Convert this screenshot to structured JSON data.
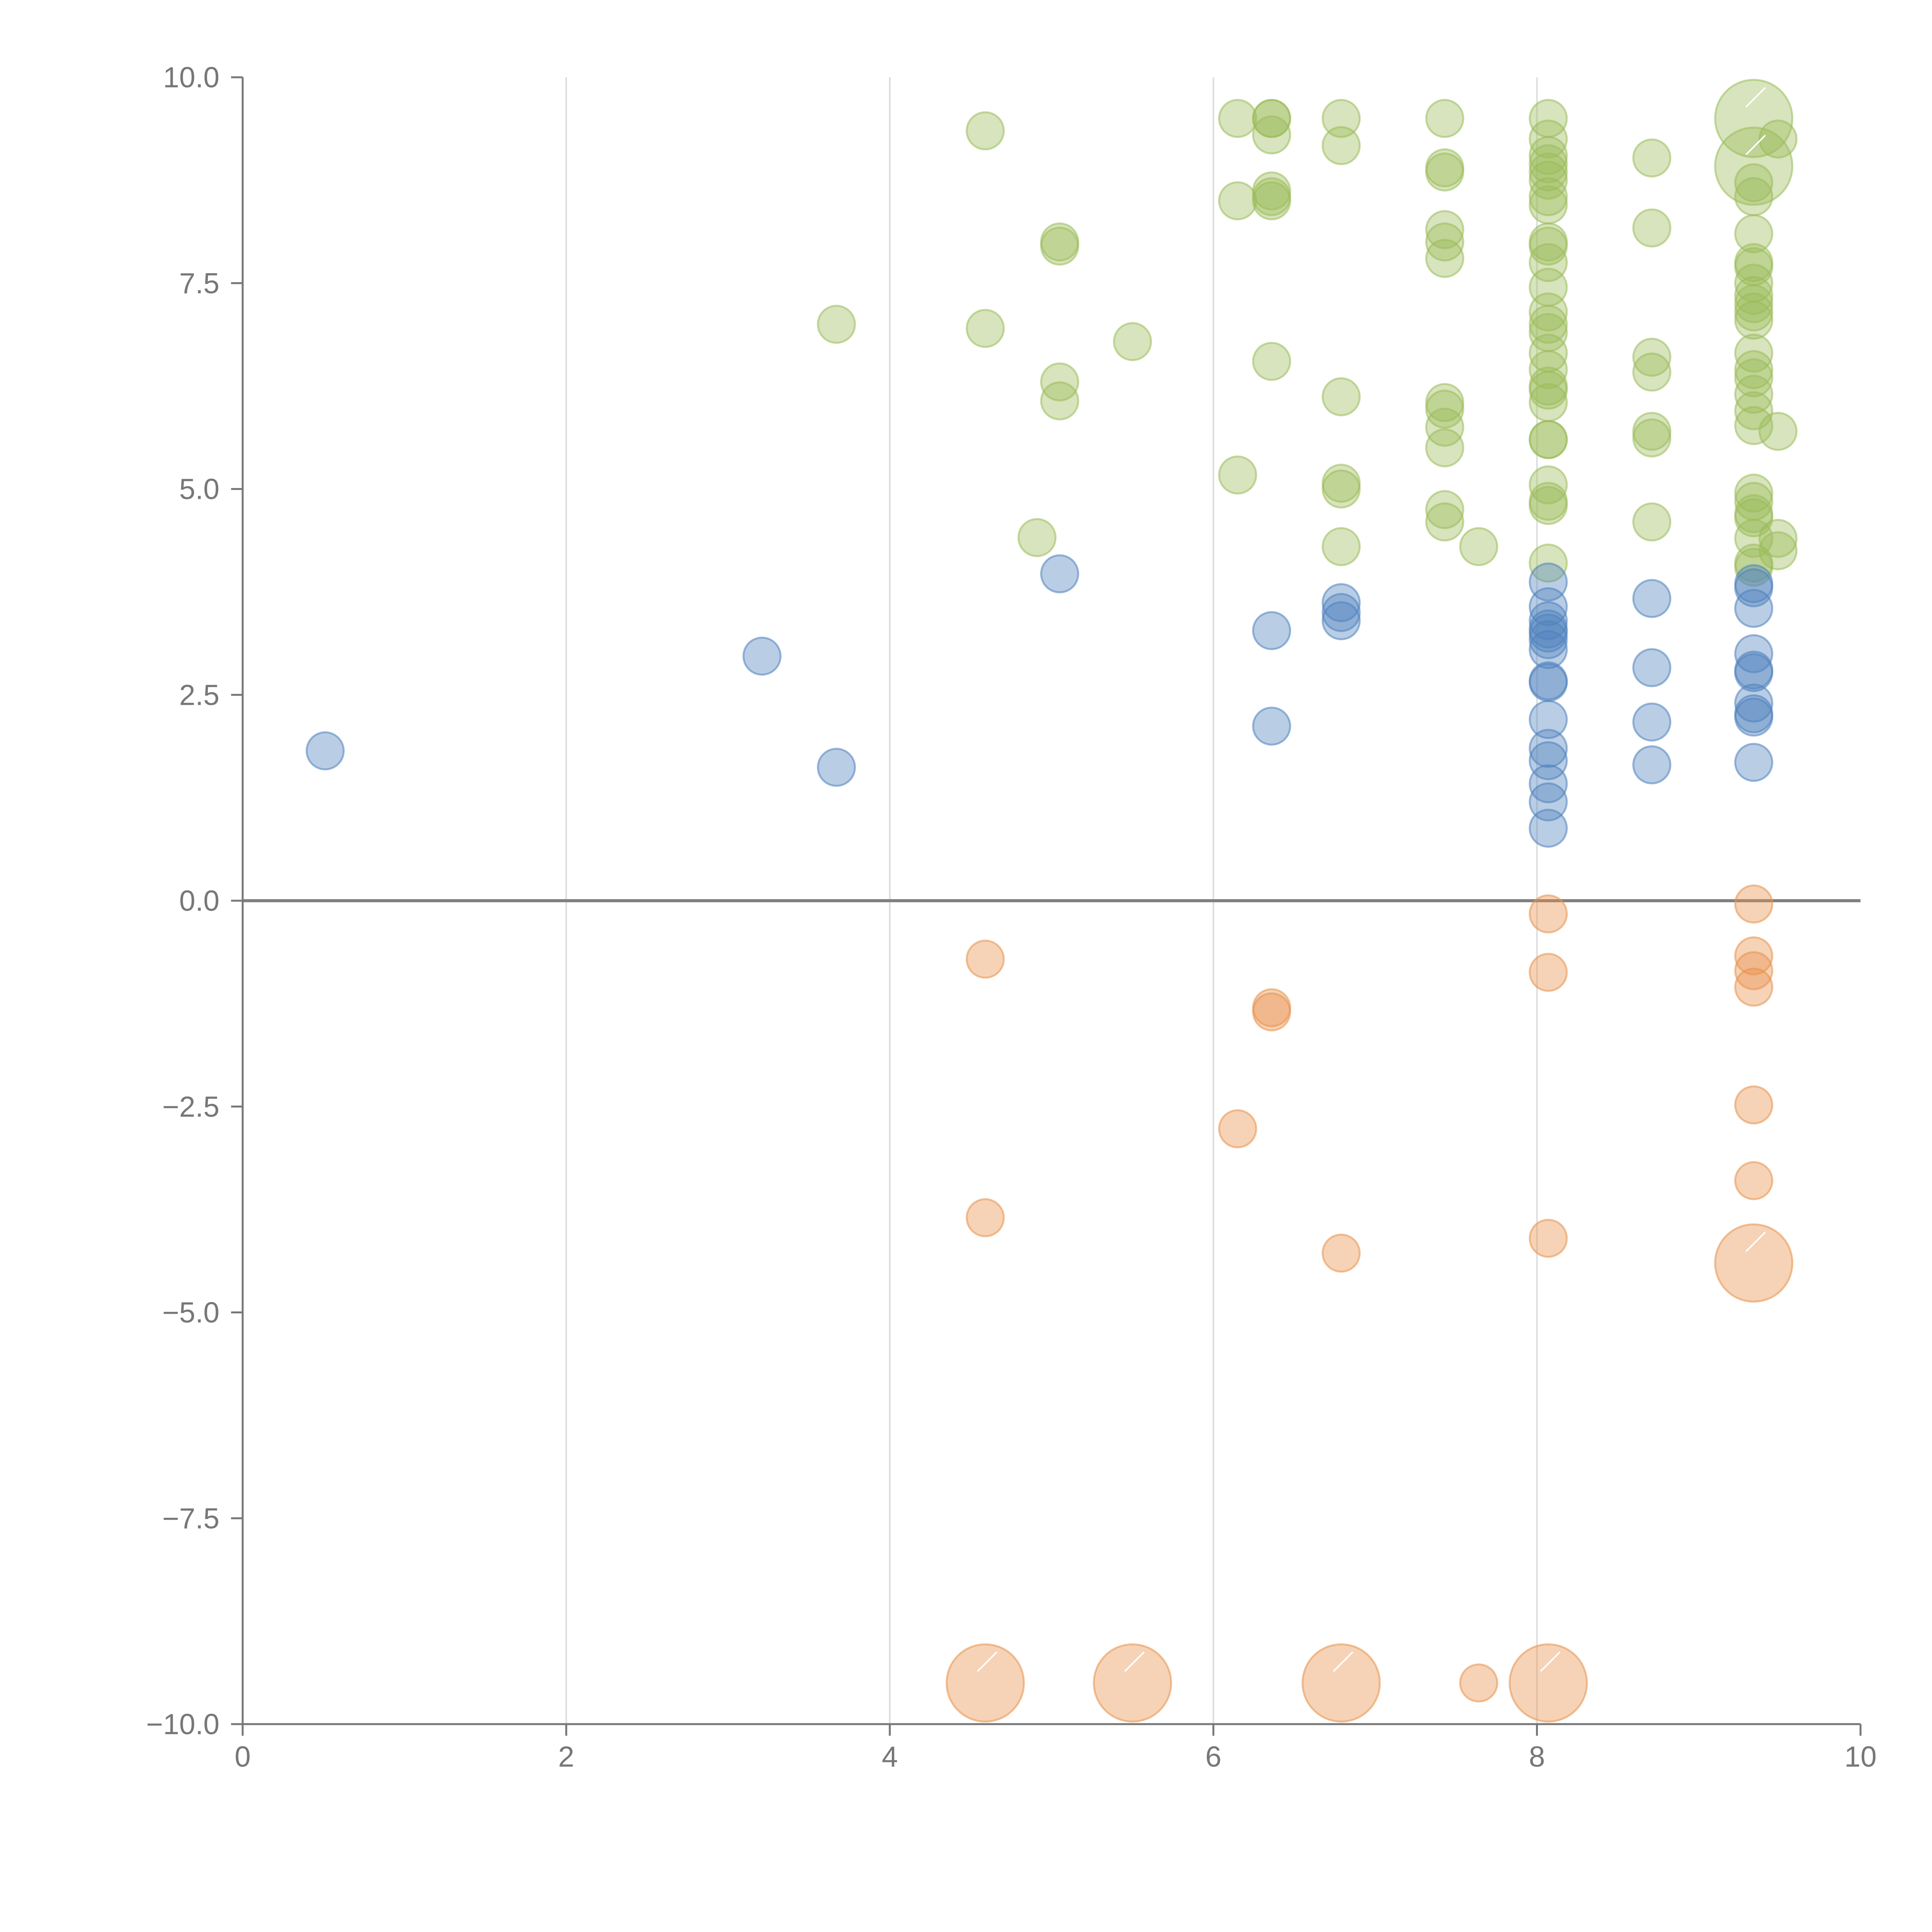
{
  "chart_data": {
    "type": "scatter",
    "title": "",
    "xlabel": "",
    "ylabel": "",
    "xlim": [
      0,
      10
    ],
    "ylim": [
      -10,
      10
    ],
    "x_ticks": [
      "0",
      "2",
      "4",
      "6",
      "8",
      "10"
    ],
    "y_ticks": [
      "10.0",
      "7.5",
      "5.0",
      "2.5",
      "0.0",
      "−2.5",
      "−5.0",
      "−7.5",
      "−10.0"
    ],
    "x_grid": [
      2,
      4,
      6,
      8
    ],
    "zero_line": 0,
    "series": [
      {
        "name": "green",
        "color": "#9bbb59",
        "points": [
          [
            3.67,
            7.0
          ],
          [
            4.59,
            9.35
          ],
          [
            4.59,
            6.95
          ],
          [
            4.91,
            4.41
          ],
          [
            5.05,
            8.0
          ],
          [
            5.05,
            7.95
          ],
          [
            5.05,
            6.3
          ],
          [
            5.05,
            6.07
          ],
          [
            5.5,
            6.79
          ],
          [
            6.15,
            9.5
          ],
          [
            6.15,
            8.5
          ],
          [
            6.15,
            5.17
          ],
          [
            6.36,
            9.5
          ],
          [
            6.36,
            9.5
          ],
          [
            6.36,
            9.3
          ],
          [
            6.36,
            8.62
          ],
          [
            6.36,
            8.55
          ],
          [
            6.36,
            8.5
          ],
          [
            6.36,
            6.55
          ],
          [
            6.79,
            9.5
          ],
          [
            6.79,
            9.17
          ],
          [
            6.79,
            6.12
          ],
          [
            6.79,
            5.07
          ],
          [
            6.79,
            5.0
          ],
          [
            6.79,
            4.3
          ],
          [
            7.43,
            9.5
          ],
          [
            7.43,
            8.9
          ],
          [
            7.43,
            8.85
          ],
          [
            7.43,
            8.15
          ],
          [
            7.43,
            8.0
          ],
          [
            7.43,
            7.8
          ],
          [
            7.43,
            6.05
          ],
          [
            7.43,
            5.97
          ],
          [
            7.43,
            5.75
          ],
          [
            7.43,
            5.5
          ],
          [
            7.43,
            4.75
          ],
          [
            7.43,
            4.6
          ],
          [
            7.64,
            4.3
          ],
          [
            8.07,
            9.5
          ],
          [
            8.07,
            9.25
          ],
          [
            8.07,
            9.05
          ],
          [
            8.07,
            8.95
          ],
          [
            8.07,
            8.85
          ],
          [
            8.07,
            8.75
          ],
          [
            8.07,
            8.55
          ],
          [
            8.07,
            8.45
          ],
          [
            8.07,
            8.0
          ],
          [
            8.07,
            7.95
          ],
          [
            8.07,
            7.75
          ],
          [
            8.07,
            7.45
          ],
          [
            8.07,
            7.15
          ],
          [
            8.07,
            7.0
          ],
          [
            8.07,
            6.9
          ],
          [
            8.07,
            6.65
          ],
          [
            8.07,
            6.45
          ],
          [
            8.07,
            6.25
          ],
          [
            8.07,
            6.2
          ],
          [
            8.07,
            6.05
          ],
          [
            8.07,
            5.6
          ],
          [
            8.07,
            5.6
          ],
          [
            8.07,
            5.05
          ],
          [
            8.07,
            4.85
          ],
          [
            8.07,
            4.8
          ],
          [
            8.07,
            4.1
          ],
          [
            8.71,
            9.02
          ],
          [
            8.71,
            8.17
          ],
          [
            8.71,
            6.6
          ],
          [
            8.71,
            6.42
          ],
          [
            8.71,
            5.7
          ],
          [
            8.71,
            5.62
          ],
          [
            8.71,
            4.6
          ],
          [
            9.34,
            8.72
          ],
          [
            9.34,
            8.55
          ],
          [
            9.34,
            8.1
          ],
          [
            9.34,
            7.75
          ],
          [
            9.34,
            7.7
          ],
          [
            9.34,
            7.5
          ],
          [
            9.34,
            7.35
          ],
          [
            9.34,
            7.25
          ],
          [
            9.34,
            7.15
          ],
          [
            9.34,
            7.05
          ],
          [
            9.34,
            6.65
          ],
          [
            9.34,
            6.45
          ],
          [
            9.34,
            6.35
          ],
          [
            9.34,
            6.15
          ],
          [
            9.34,
            5.95
          ],
          [
            9.34,
            5.77
          ],
          [
            9.34,
            4.95
          ],
          [
            9.34,
            4.85
          ],
          [
            9.34,
            4.7
          ],
          [
            9.34,
            4.65
          ],
          [
            9.34,
            4.4
          ],
          [
            9.34,
            4.1
          ],
          [
            9.34,
            4.05
          ],
          [
            9.49,
            9.25
          ],
          [
            9.49,
            5.7
          ],
          [
            9.49,
            4.4
          ],
          [
            9.49,
            4.25
          ]
        ],
        "large": [
          [
            9.34,
            9.5
          ],
          [
            9.34,
            8.92
          ]
        ]
      },
      {
        "name": "blue",
        "color": "#4f81bd",
        "points": [
          [
            0.51,
            1.82
          ],
          [
            3.21,
            2.97
          ],
          [
            3.67,
            1.62
          ],
          [
            5.05,
            3.97
          ],
          [
            6.36,
            3.28
          ],
          [
            6.36,
            2.12
          ],
          [
            6.79,
            3.62
          ],
          [
            6.79,
            3.5
          ],
          [
            6.79,
            3.4
          ],
          [
            8.07,
            3.87
          ],
          [
            8.07,
            3.57
          ],
          [
            8.07,
            3.4
          ],
          [
            8.07,
            3.3
          ],
          [
            8.07,
            3.25
          ],
          [
            8.07,
            3.17
          ],
          [
            8.07,
            3.05
          ],
          [
            8.07,
            2.67
          ],
          [
            8.07,
            2.65
          ],
          [
            8.07,
            2.2
          ],
          [
            8.07,
            1.85
          ],
          [
            8.07,
            1.7
          ],
          [
            8.07,
            1.42
          ],
          [
            8.07,
            1.2
          ],
          [
            8.07,
            0.88
          ],
          [
            8.71,
            3.67
          ],
          [
            8.71,
            2.83
          ],
          [
            8.71,
            2.17
          ],
          [
            8.71,
            1.65
          ],
          [
            9.34,
            3.85
          ],
          [
            9.34,
            3.8
          ],
          [
            9.34,
            3.55
          ],
          [
            9.34,
            3.0
          ],
          [
            9.34,
            2.8
          ],
          [
            9.34,
            2.77
          ],
          [
            9.34,
            2.4
          ],
          [
            9.34,
            2.27
          ],
          [
            9.34,
            2.23
          ],
          [
            9.34,
            1.68
          ]
        ],
        "large": []
      },
      {
        "name": "orange",
        "color": "#e8914a",
        "points": [
          [
            4.59,
            -0.71
          ],
          [
            4.59,
            -3.85
          ],
          [
            6.15,
            -2.77
          ],
          [
            6.36,
            -1.3
          ],
          [
            6.36,
            -1.35
          ],
          [
            6.79,
            -4.28
          ],
          [
            8.07,
            -0.16
          ],
          [
            8.07,
            -0.87
          ],
          [
            8.07,
            -4.1
          ],
          [
            9.34,
            -0.04
          ],
          [
            9.34,
            -0.67
          ],
          [
            9.34,
            -0.85
          ],
          [
            9.34,
            -1.05
          ],
          [
            9.34,
            -2.48
          ],
          [
            9.34,
            -3.4
          ],
          [
            7.64,
            -9.5
          ]
        ],
        "large": [
          [
            9.34,
            -4.4
          ],
          [
            4.59,
            -9.5
          ],
          [
            5.5,
            -9.5
          ],
          [
            6.79,
            -9.5
          ],
          [
            8.07,
            -9.5
          ]
        ]
      }
    ]
  }
}
